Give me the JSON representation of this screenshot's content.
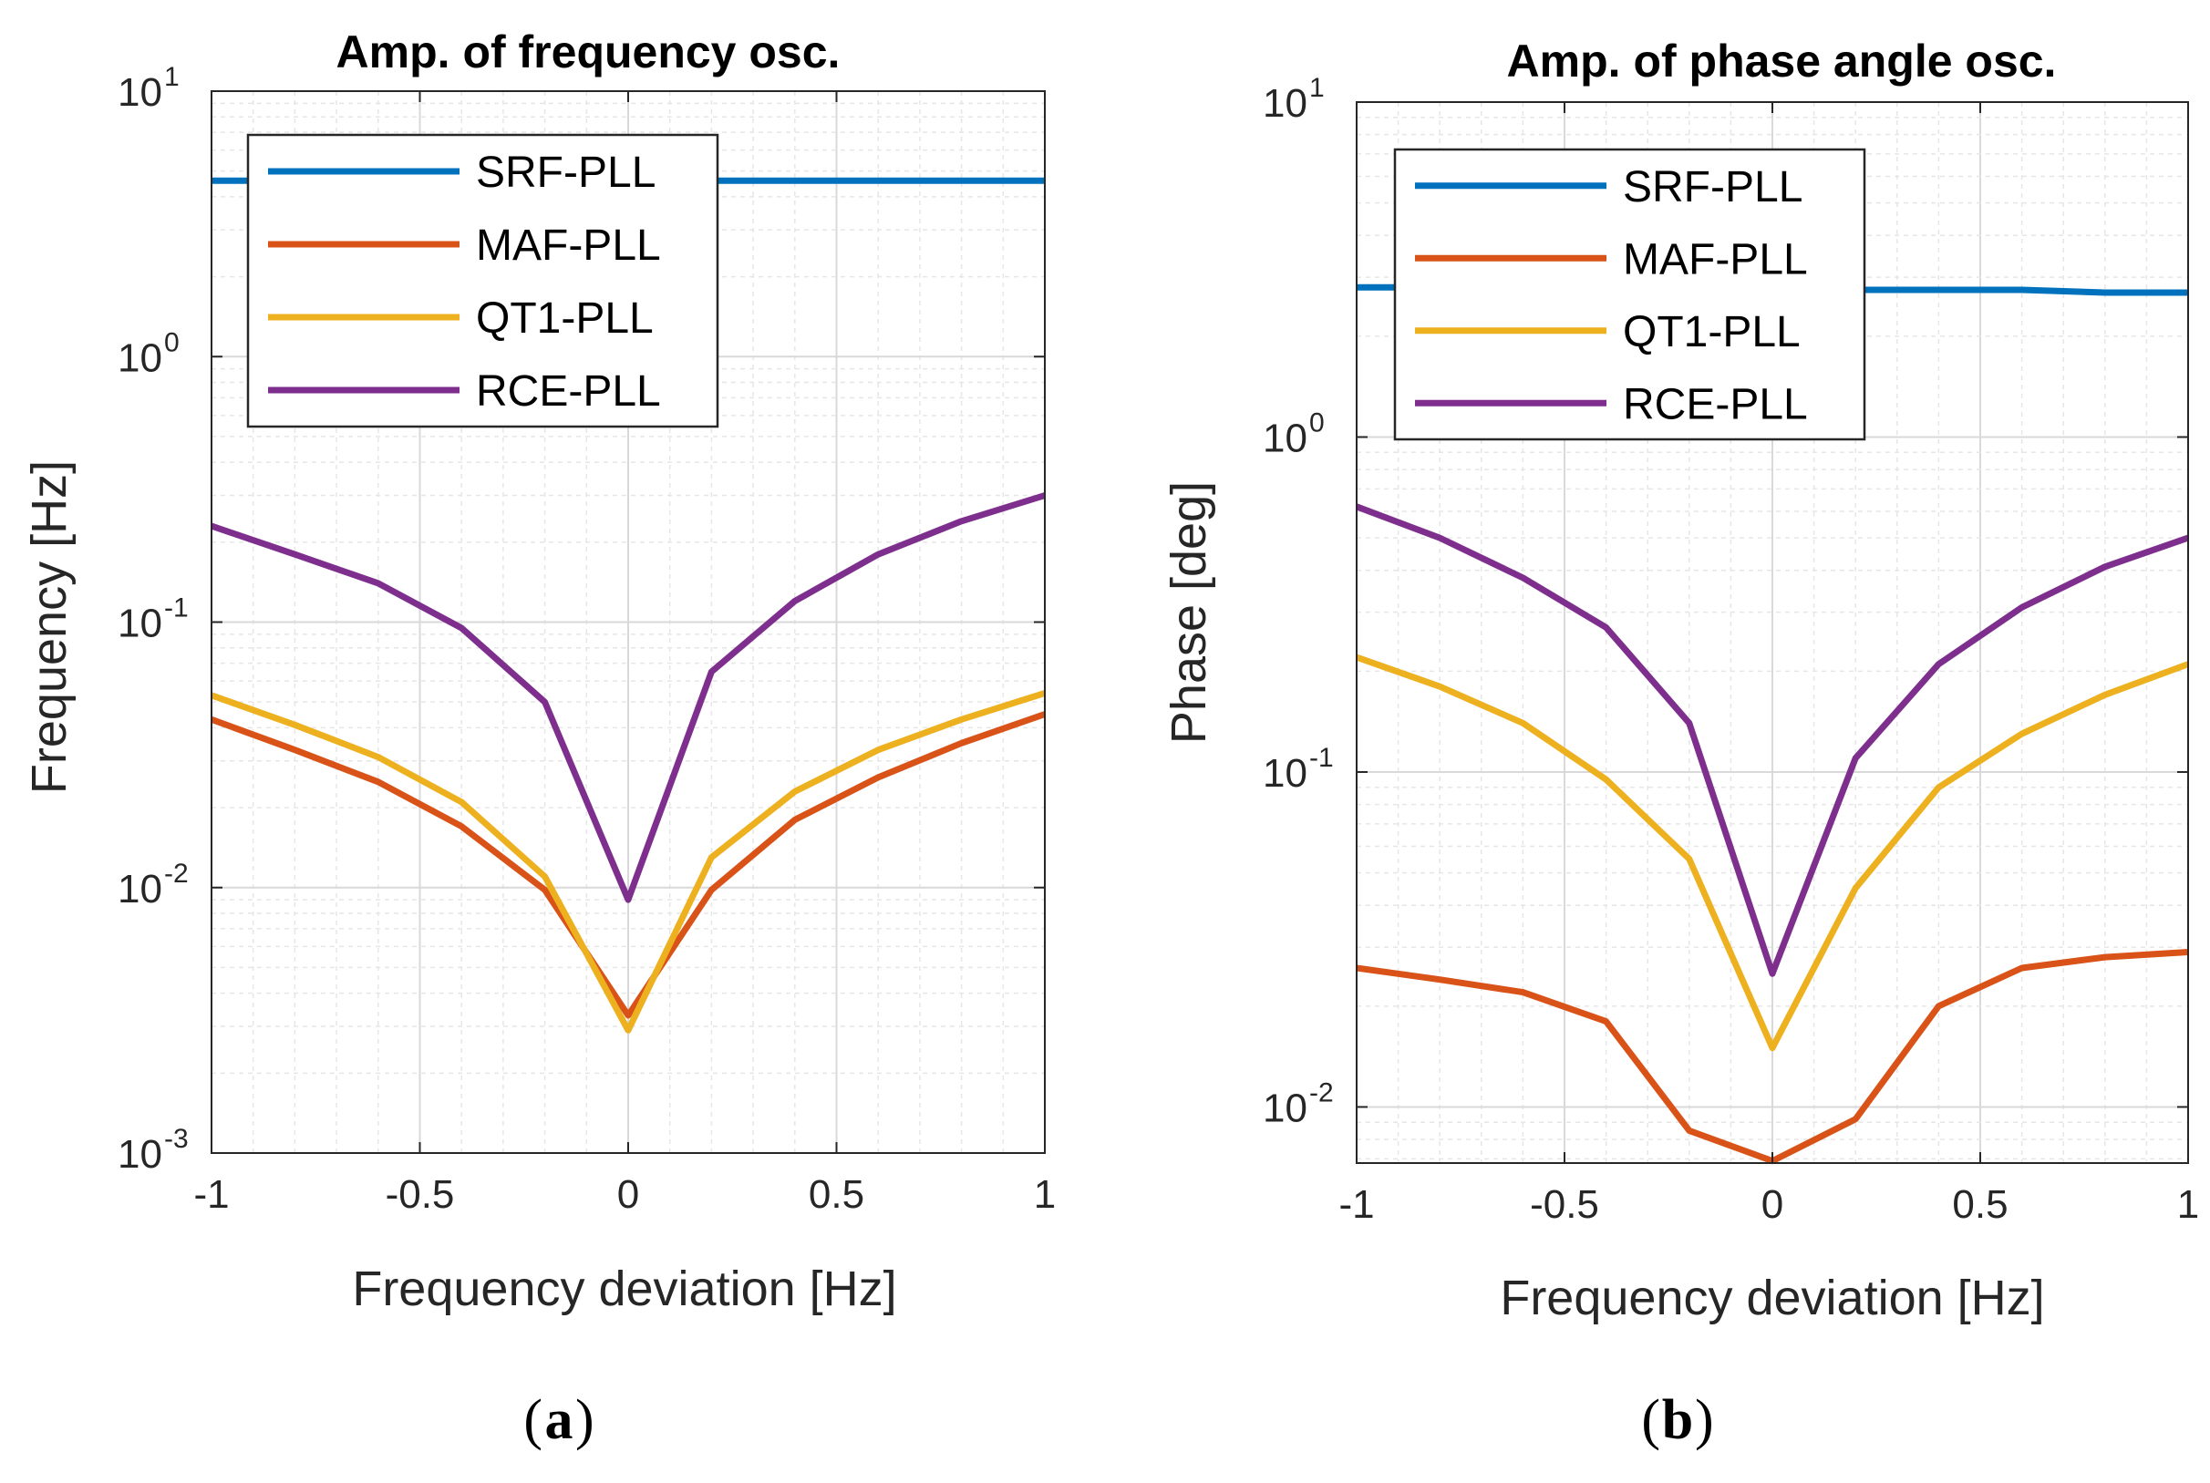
{
  "chart_data": [
    {
      "type": "line",
      "panel_label": "a",
      "title": "Amp. of frequency osc.",
      "xlabel": "Frequency deviation [Hz]",
      "ylabel": "Frequency [Hz]",
      "xlim": [
        -1,
        1
      ],
      "ylim": [
        0.001,
        10
      ],
      "yscale": "log",
      "grid": true,
      "minor_grid": true,
      "legend_position": "top-left",
      "x_ticks": [
        "-1",
        "-0.5",
        "0",
        "0.5",
        "1"
      ],
      "y_ticks": [
        {
          "base": "10",
          "exp": "-3"
        },
        {
          "base": "10",
          "exp": "-2"
        },
        {
          "base": "10",
          "exp": "-1"
        },
        {
          "base": "10",
          "exp": "0"
        },
        {
          "base": "10",
          "exp": "1"
        }
      ],
      "x": [
        -1,
        -0.8,
        -0.6,
        -0.4,
        -0.2,
        0,
        0.2,
        0.4,
        0.6,
        0.8,
        1
      ],
      "series": [
        {
          "name": "SRF-PLL",
          "color": "#0072BD",
          "values": [
            4.6,
            4.6,
            4.6,
            4.6,
            4.6,
            4.6,
            4.6,
            4.6,
            4.6,
            4.6,
            4.6
          ]
        },
        {
          "name": "MAF-PLL",
          "color": "#D95319",
          "values": [
            0.043,
            0.033,
            0.025,
            0.017,
            0.0098,
            0.0033,
            0.0098,
            0.018,
            0.026,
            0.035,
            0.045
          ]
        },
        {
          "name": "QT1-PLL",
          "color": "#EDB120",
          "values": [
            0.053,
            0.041,
            0.031,
            0.021,
            0.011,
            0.0029,
            0.013,
            0.023,
            0.033,
            0.043,
            0.054
          ]
        },
        {
          "name": "RCE-PLL",
          "color": "#7E2F8E",
          "values": [
            0.23,
            0.18,
            0.14,
            0.095,
            0.05,
            0.009,
            0.065,
            0.12,
            0.18,
            0.24,
            0.3
          ]
        }
      ]
    },
    {
      "type": "line",
      "panel_label": "b",
      "title": "Amp. of phase angle osc.",
      "xlabel": "Frequency deviation [Hz]",
      "ylabel": "Phase [deg]",
      "xlim": [
        -1,
        1
      ],
      "ylim": [
        0.0068,
        10
      ],
      "yscale": "log",
      "grid": true,
      "minor_grid": true,
      "legend_position": "top-left",
      "x_ticks": [
        "-1",
        "-0.5",
        "0",
        "0.5",
        "1"
      ],
      "y_ticks": [
        {
          "base": "10",
          "exp": "-2"
        },
        {
          "base": "10",
          "exp": "-1"
        },
        {
          "base": "10",
          "exp": "0"
        },
        {
          "base": "10",
          "exp": "1"
        }
      ],
      "x": [
        -1,
        -0.8,
        -0.6,
        -0.4,
        -0.2,
        0,
        0.2,
        0.4,
        0.6,
        0.8,
        1
      ],
      "series": [
        {
          "name": "SRF-PLL",
          "color": "#0072BD",
          "values": [
            2.8,
            2.8,
            2.8,
            2.8,
            2.8,
            2.8,
            2.75,
            2.75,
            2.75,
            2.7,
            2.7
          ]
        },
        {
          "name": "MAF-PLL",
          "color": "#D95319",
          "values": [
            0.026,
            0.024,
            0.022,
            0.018,
            0.0085,
            0.0069,
            0.0092,
            0.02,
            0.026,
            0.028,
            0.029
          ]
        },
        {
          "name": "QT1-PLL",
          "color": "#EDB120",
          "values": [
            0.22,
            0.18,
            0.14,
            0.095,
            0.055,
            0.015,
            0.045,
            0.09,
            0.13,
            0.17,
            0.21
          ]
        },
        {
          "name": "RCE-PLL",
          "color": "#7E2F8E",
          "values": [
            0.62,
            0.5,
            0.38,
            0.27,
            0.14,
            0.025,
            0.11,
            0.21,
            0.31,
            0.41,
            0.5
          ]
        }
      ]
    }
  ]
}
